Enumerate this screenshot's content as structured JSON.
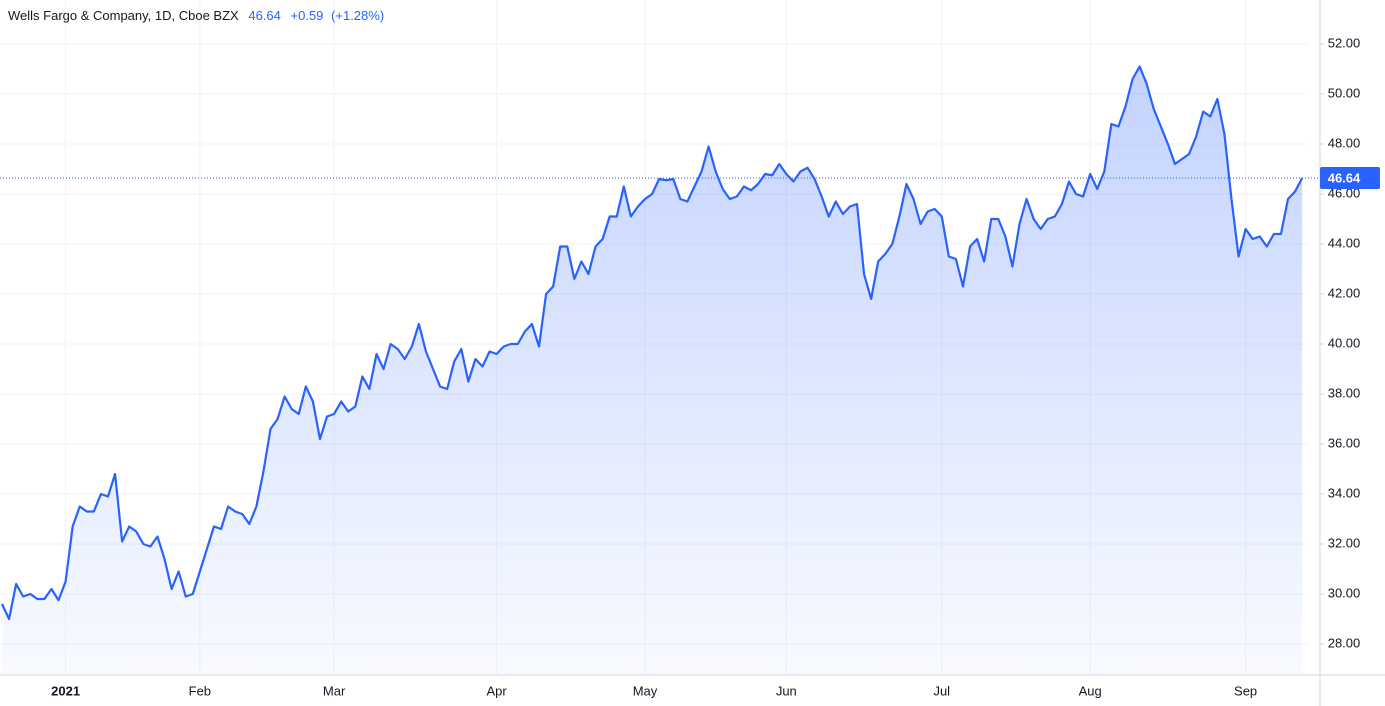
{
  "chart_data": {
    "type": "area",
    "title": "Wells Fargo & Company, 1D, Cboe BZX",
    "change": "+0.59",
    "change_percent": "(+1.28%)",
    "color": "#2962ff",
    "categories": [
      null,
      null,
      null,
      null,
      null,
      null,
      null,
      null,
      null,
      "2021",
      null,
      null,
      null,
      null,
      null,
      null,
      null,
      null,
      null,
      null,
      null,
      null,
      null,
      null,
      null,
      null,
      null,
      null,
      "Feb",
      null,
      null,
      null,
      null,
      null,
      null,
      null,
      null,
      null,
      null,
      null,
      null,
      null,
      null,
      null,
      null,
      null,
      null,
      "Mar",
      null,
      null,
      null,
      null,
      null,
      null,
      null,
      null,
      null,
      null,
      null,
      null,
      null,
      null,
      null,
      null,
      null,
      null,
      null,
      null,
      null,
      null,
      "Apr",
      null,
      null,
      null,
      null,
      null,
      null,
      null,
      null,
      null,
      null,
      null,
      null,
      null,
      null,
      null,
      null,
      null,
      null,
      null,
      null,
      "May",
      null,
      null,
      null,
      null,
      null,
      null,
      null,
      null,
      null,
      null,
      null,
      null,
      null,
      null,
      null,
      null,
      null,
      null,
      null,
      "Jun",
      null,
      null,
      null,
      null,
      null,
      null,
      null,
      null,
      null,
      null,
      null,
      null,
      null,
      null,
      null,
      null,
      null,
      null,
      null,
      null,
      null,
      "Jul",
      null,
      null,
      null,
      null,
      null,
      null,
      null,
      null,
      null,
      null,
      null,
      null,
      null,
      null,
      null,
      null,
      null,
      null,
      null,
      null,
      "Aug",
      null,
      null,
      null,
      null,
      null,
      null,
      null,
      null,
      null,
      null,
      null,
      null,
      null,
      null,
      null,
      null,
      null,
      null,
      null,
      null,
      null,
      "Sep",
      null,
      null,
      null,
      null,
      null,
      null,
      null,
      null
    ],
    "values": [
      29.6,
      29.0,
      30.4,
      29.9,
      30.0,
      29.8,
      29.8,
      30.2,
      29.75,
      30.5,
      32.7,
      33.5,
      33.3,
      33.3,
      34.0,
      33.9,
      34.8,
      32.1,
      32.7,
      32.5,
      32.0,
      31.9,
      32.3,
      31.4,
      30.2,
      30.9,
      29.9,
      30.0,
      30.9,
      31.8,
      32.7,
      32.6,
      33.5,
      33.3,
      33.2,
      32.8,
      33.5,
      34.9,
      36.6,
      37.0,
      37.9,
      37.4,
      37.2,
      38.3,
      37.7,
      36.2,
      37.1,
      37.2,
      37.7,
      37.3,
      37.5,
      38.7,
      38.2,
      39.6,
      39.0,
      40.0,
      39.8,
      39.4,
      39.9,
      40.8,
      39.7,
      39.0,
      38.3,
      38.2,
      39.3,
      39.8,
      38.5,
      39.4,
      39.1,
      39.7,
      39.6,
      39.9,
      40.0,
      40.0,
      40.5,
      40.8,
      39.9,
      42.0,
      42.3,
      43.9,
      43.9,
      42.6,
      43.3,
      42.8,
      43.9,
      44.2,
      45.1,
      45.1,
      46.3,
      45.1,
      45.5,
      45.8,
      46.0,
      46.6,
      46.55,
      46.6,
      45.8,
      45.7,
      46.3,
      46.9,
      47.9,
      46.9,
      46.2,
      45.8,
      45.9,
      46.3,
      46.15,
      46.4,
      46.8,
      46.75,
      47.2,
      46.8,
      46.5,
      46.9,
      47.05,
      46.6,
      45.9,
      45.1,
      45.7,
      45.2,
      45.5,
      45.6,
      42.8,
      41.8,
      43.3,
      43.6,
      44.0,
      45.1,
      46.4,
      45.8,
      44.8,
      45.3,
      45.4,
      45.1,
      43.5,
      43.4,
      42.3,
      43.9,
      44.2,
      43.3,
      45.0,
      45.0,
      44.3,
      43.1,
      44.8,
      45.8,
      45.0,
      44.6,
      45.0,
      45.1,
      45.6,
      46.5,
      46.0,
      45.9,
      46.8,
      46.2,
      46.9,
      48.8,
      48.7,
      49.5,
      50.6,
      51.1,
      50.4,
      49.4,
      48.7,
      48.0,
      47.2,
      47.4,
      47.6,
      48.3,
      49.3,
      49.1,
      49.8,
      48.4,
      45.8,
      43.5,
      44.6,
      44.2,
      44.3,
      43.9,
      44.4,
      44.4,
      45.8,
      46.1,
      46.64
    ],
    "value_labels": {
      "184": "46.64"
    },
    "ylim": [
      26.76,
      53.76
    ],
    "yticks": [
      {
        "value": 28,
        "label": "28.00"
      },
      {
        "value": 30,
        "label": "30.00"
      },
      {
        "value": 32,
        "label": "32.00"
      },
      {
        "value": 34,
        "label": "34.00"
      },
      {
        "value": 36,
        "label": "36.00"
      },
      {
        "value": 38,
        "label": "38.00"
      },
      {
        "value": 40,
        "label": "40.00"
      },
      {
        "value": 42,
        "label": "42.00"
      },
      {
        "value": 44,
        "label": "44.00"
      },
      {
        "value": 46,
        "label": "46.00"
      },
      {
        "value": 48,
        "label": "48.00"
      },
      {
        "value": 50,
        "label": "50.00"
      },
      {
        "value": 52,
        "label": "52.00"
      }
    ],
    "grid": true
  }
}
